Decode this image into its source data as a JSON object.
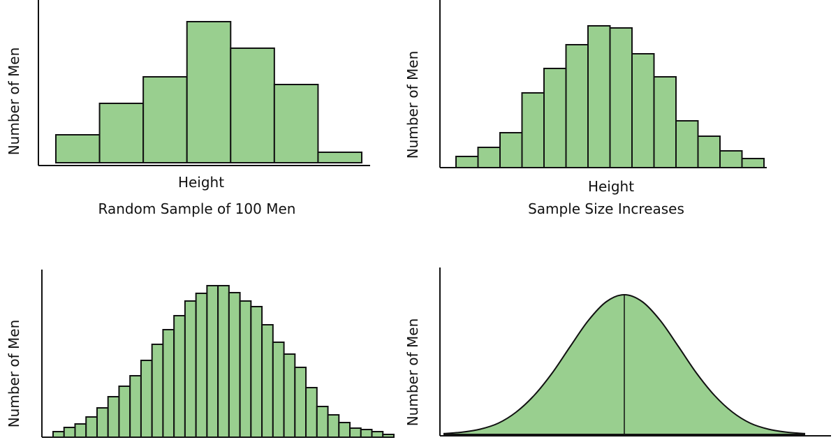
{
  "colors": {
    "fill": "#99cf8f",
    "stroke": "#111111",
    "axis": "#111111"
  },
  "chart_data": [
    {
      "type": "bar",
      "title": "Random Sample of 100 Men",
      "xlabel": "Height",
      "ylabel": "Number of Men",
      "values": [
        40,
        85,
        123,
        202,
        164,
        112,
        15
      ],
      "grid": false
    },
    {
      "type": "bar",
      "title": "Sample Size Increases",
      "xlabel": "Height",
      "ylabel": "Number of Men",
      "values": [
        16,
        29,
        50,
        107,
        142,
        176,
        203,
        200,
        163,
        130,
        67,
        45,
        24,
        13
      ],
      "grid": false
    },
    {
      "type": "bar",
      "title": "",
      "xlabel": "",
      "ylabel": "Number of Men",
      "values": [
        8,
        14,
        19,
        29,
        42,
        58,
        73,
        88,
        110,
        133,
        154,
        174,
        195,
        206,
        217,
        217,
        207,
        195,
        187,
        161,
        136,
        119,
        100,
        71,
        44,
        32,
        21,
        13,
        11,
        8,
        4
      ],
      "grid": false
    },
    {
      "type": "area",
      "title": "",
      "xlabel": "",
      "ylabel": "Number of Men",
      "values": [
        1.2,
        3.2,
        7.5,
        16,
        32,
        56,
        88,
        126,
        163,
        190,
        200,
        190,
        163,
        126,
        88,
        56,
        32,
        16,
        7.5,
        3.2,
        1.2
      ],
      "mean_line": true,
      "grid": false
    }
  ]
}
